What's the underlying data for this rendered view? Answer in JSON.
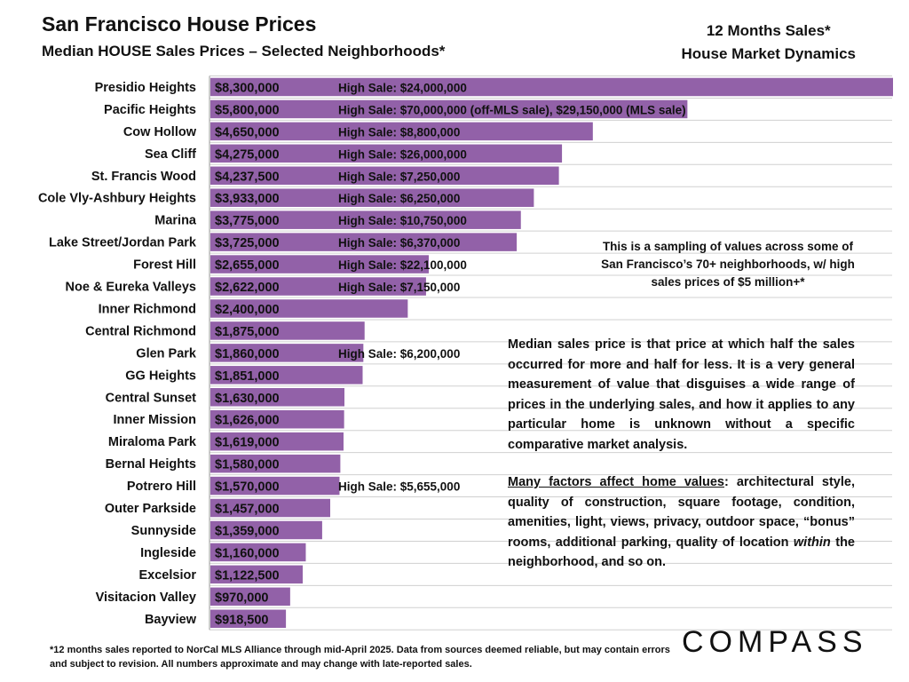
{
  "header": {
    "title": "San Francisco House Prices",
    "subtitle": "Median HOUSE Sales Prices – Selected Neighborhoods*",
    "right_line1": "12 Months Sales*",
    "right_line2": "House Market Dynamics"
  },
  "notes": {
    "sampling": "This is a sampling of values across some of San Francisco’s 70+ neighborhoods, w/ high sales prices of $5 million+*",
    "median_para": "Median sales price is that price at which half the sales occurred for more and half for less. It is a very general measurement of value that disguises a wide range of prices in the underlying sales, and how it applies to any particular home is unknown without a specific comparative market analysis.",
    "factors_lead": "Many factors affect home values",
    "factors_mid": ": architectural style, quality of construction, square footage, condition, amenities, light, views, privacy, outdoor space, “bonus” rooms, additional parking, quality of location ",
    "factors_italic": "within",
    "factors_tail": " the neighborhood, and so on.",
    "footnote": "*12 months sales reported to NorCal MLS Alliance through mid-April 2025. Data from sources deemed reliable, but may contain errors and subject to revision. All numbers approximate and may change with late-reported sales."
  },
  "logo": "COMPASS",
  "colors": {
    "bar": "#9261a8",
    "grid": "#d0d0d0"
  },
  "chart_data": {
    "type": "bar",
    "orientation": "horizontal",
    "xlim": [
      0,
      8300000
    ],
    "categories": [
      "Presidio Heights",
      "Pacific Heights",
      "Cow Hollow",
      "Sea Cliff",
      "St. Francis Wood",
      "Cole Vly-Ashbury Heights",
      "Marina",
      "Lake Street/Jordan Park",
      "Forest Hill",
      "Noe & Eureka Valleys",
      "Inner Richmond",
      "Central Richmond",
      "Glen Park",
      "GG Heights",
      "Central Sunset",
      "Inner Mission",
      "Miraloma Park",
      "Bernal Heights",
      "Potrero Hill",
      "Outer Parkside",
      "Sunnyside",
      "Ingleside",
      "Excelsior",
      "Visitacion Valley",
      "Bayview"
    ],
    "values": [
      8300000,
      5800000,
      4650000,
      4275000,
      4237500,
      3933000,
      3775000,
      3725000,
      2655000,
      2622000,
      2400000,
      1875000,
      1860000,
      1851000,
      1630000,
      1626000,
      1619000,
      1580000,
      1570000,
      1457000,
      1359000,
      1160000,
      1122500,
      970000,
      918500
    ],
    "value_labels": [
      "$8,300,000",
      "$5,800,000",
      "$4,650,000",
      "$4,275,000",
      "$4,237,500",
      "$3,933,000",
      "$3,775,000",
      "$3,725,000",
      "$2,655,000",
      "$2,622,000",
      "$2,400,000",
      "$1,875,000",
      "$1,860,000",
      "$1,851,000",
      "$1,630,000",
      "$1,626,000",
      "$1,619,000",
      "$1,580,000",
      "$1,570,000",
      "$1,457,000",
      "$1,359,000",
      "$1,160,000",
      "$1,122,500",
      "$970,000",
      "$918,500"
    ],
    "high_sales": [
      "High Sale:  $24,000,000",
      "High Sale:  $70,000,000 (off-MLS sale), $29,150,000 (MLS sale)",
      "High Sale:  $8,800,000",
      "High Sale:  $26,000,000",
      "High Sale:  $7,250,000",
      "High Sale:  $6,250,000",
      "High Sale:  $10,750,000",
      "High Sale:  $6,370,000",
      "High Sale:  $22,100,000",
      "High Sale:  $7,150,000",
      "",
      "",
      "High Sale:  $6,200,000",
      "",
      "",
      "",
      "",
      "",
      "High Sale:  $5,655,000",
      "",
      "",
      "",
      "",
      "",
      ""
    ],
    "grid": true,
    "legend": "none"
  }
}
